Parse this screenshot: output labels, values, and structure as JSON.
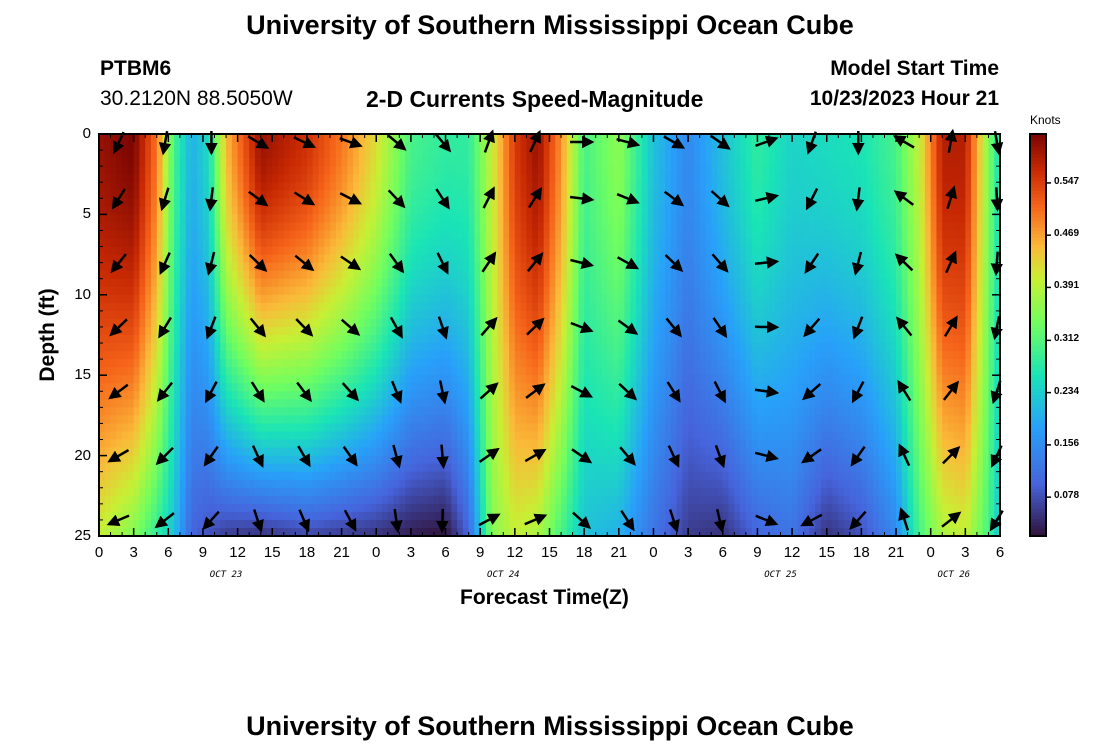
{
  "header": {
    "title": "University of Southern Mississippi Ocean Cube",
    "footer_title": "University of Southern Mississippi Ocean Cube",
    "station_id": "PTBM6",
    "coords": "30.2120N  88.5050W",
    "plot_title": "2-D Currents Speed-Magnitude",
    "model_label": "Model Start Time",
    "model_time": "10/23/2023 Hour 21"
  },
  "chart_data": {
    "type": "heatmap",
    "title": "2-D Currents Speed-Magnitude",
    "xlabel": "Forecast Time(Z)",
    "ylabel": "Depth (ft)",
    "ylim": [
      0,
      25
    ],
    "xlim_hours": [
      0,
      78
    ],
    "x_ticks": [
      "0",
      "3",
      "6",
      "9",
      "12",
      "15",
      "18",
      "21",
      "0",
      "3",
      "6",
      "9",
      "12",
      "15",
      "18",
      "21",
      "0",
      "3",
      "6",
      "9",
      "12",
      "15",
      "18",
      "21",
      "0",
      "3",
      "6"
    ],
    "y_ticks": [
      0,
      5,
      10,
      15,
      20,
      25
    ],
    "date_labels": [
      {
        "label": "OCT 23",
        "hour": 11
      },
      {
        "label": "OCT 24",
        "hour": 35
      },
      {
        "label": "OCT 25",
        "hour": 59
      },
      {
        "label": "OCT 26",
        "hour": 74
      }
    ],
    "colorbar": {
      "title": "Knots",
      "ticks": [
        0.078,
        0.156,
        0.234,
        0.312,
        0.391,
        0.469,
        0.547
      ],
      "tick_labels": [
        "0.078",
        "0.156",
        "0.234",
        "0.312",
        "0.391",
        "0.469",
        "0.547"
      ],
      "range": [
        0.02,
        0.62
      ]
    },
    "speed_profiles": [
      {
        "hour": 0,
        "surface": 0.6,
        "bottom": 0.4
      },
      {
        "hour": 3,
        "surface": 0.62,
        "bottom": 0.35
      },
      {
        "hour": 5,
        "surface": 0.5,
        "bottom": 0.28
      },
      {
        "hour": 6.5,
        "surface": 0.3,
        "bottom": 0.22
      },
      {
        "hour": 8,
        "surface": 0.2,
        "bottom": 0.1
      },
      {
        "hour": 9.5,
        "surface": 0.25,
        "bottom": 0.08
      },
      {
        "hour": 11,
        "surface": 0.45,
        "bottom": 0.06
      },
      {
        "hour": 14,
        "surface": 0.6,
        "bottom": 0.05
      },
      {
        "hour": 18,
        "surface": 0.56,
        "bottom": 0.07
      },
      {
        "hour": 21,
        "surface": 0.5,
        "bottom": 0.06
      },
      {
        "hour": 24,
        "surface": 0.42,
        "bottom": 0.05
      },
      {
        "hour": 27,
        "surface": 0.3,
        "bottom": 0.03
      },
      {
        "hour": 30,
        "surface": 0.28,
        "bottom": 0.02
      },
      {
        "hour": 32,
        "surface": 0.28,
        "bottom": 0.1
      },
      {
        "hour": 34,
        "surface": 0.4,
        "bottom": 0.35
      },
      {
        "hour": 36,
        "surface": 0.55,
        "bottom": 0.4
      },
      {
        "hour": 38,
        "surface": 0.6,
        "bottom": 0.38
      },
      {
        "hour": 40,
        "surface": 0.48,
        "bottom": 0.3
      },
      {
        "hour": 42,
        "surface": 0.3,
        "bottom": 0.22
      },
      {
        "hour": 45,
        "surface": 0.36,
        "bottom": 0.2
      },
      {
        "hour": 48,
        "surface": 0.22,
        "bottom": 0.12
      },
      {
        "hour": 51,
        "surface": 0.15,
        "bottom": 0.06
      },
      {
        "hour": 54,
        "surface": 0.22,
        "bottom": 0.05
      },
      {
        "hour": 57,
        "surface": 0.28,
        "bottom": 0.1
      },
      {
        "hour": 60,
        "surface": 0.24,
        "bottom": 0.12
      },
      {
        "hour": 63,
        "surface": 0.25,
        "bottom": 0.05
      },
      {
        "hour": 66,
        "surface": 0.26,
        "bottom": 0.08
      },
      {
        "hour": 69,
        "surface": 0.3,
        "bottom": 0.15
      },
      {
        "hour": 71,
        "surface": 0.4,
        "bottom": 0.3
      },
      {
        "hour": 73,
        "surface": 0.58,
        "bottom": 0.38
      },
      {
        "hour": 75,
        "surface": 0.58,
        "bottom": 0.4
      },
      {
        "hour": 77,
        "surface": 0.35,
        "bottom": 0.3
      },
      {
        "hour": 78,
        "surface": 0.25,
        "bottom": 0.22
      }
    ],
    "vector_hours": [
      0,
      4,
      8,
      12,
      16,
      20,
      24,
      28,
      32,
      36,
      40,
      44,
      48,
      52,
      56,
      60,
      64,
      68,
      72,
      76
    ],
    "vector_depths": [
      0.5,
      4,
      8,
      12,
      16,
      20,
      24
    ],
    "vector_directions_deg": [
      225,
      210,
      200,
      140,
      135,
      130,
      150,
      160,
      40,
      45,
      110,
      125,
      140,
      145,
      90,
      220,
      200,
      320,
      30,
      190
    ]
  }
}
